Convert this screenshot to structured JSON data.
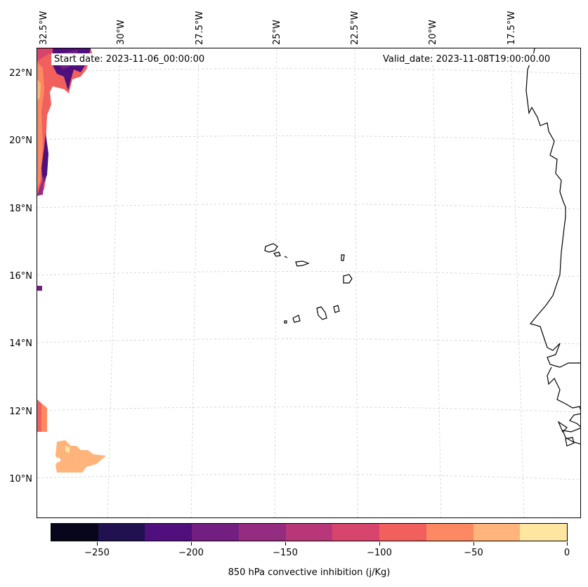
{
  "map": {
    "start_label": "Start date: 2023-11-06_00:00:00",
    "valid_label": "Valid_date: 2023-11-08T19:00:00.00",
    "lon_labels": [
      "32.5°W",
      "30°W",
      "27.5°W",
      "25°W",
      "22.5°W",
      "20°W",
      "17.5°W"
    ],
    "lat_labels": [
      "22°N",
      "20°N",
      "18°N",
      "16°N",
      "14°N",
      "12°N",
      "10°N"
    ],
    "region": "Cape Verde islands and West African coast",
    "projection": "conic (curved graticule)",
    "gridlines": true
  },
  "colorbar": {
    "title": "850 hPa convective inhibition (j/Kg)",
    "ticks": [
      "−250",
      "−200",
      "−150",
      "−100",
      "−50",
      "0"
    ],
    "range": [
      -275,
      0
    ],
    "colors": [
      "#07061c",
      "#221150",
      "#4f0f7c",
      "#721f81",
      "#942c80",
      "#b73779",
      "#d8456c",
      "#f1605d",
      "#fc8961",
      "#feb47b",
      "#fee6a1"
    ]
  }
}
